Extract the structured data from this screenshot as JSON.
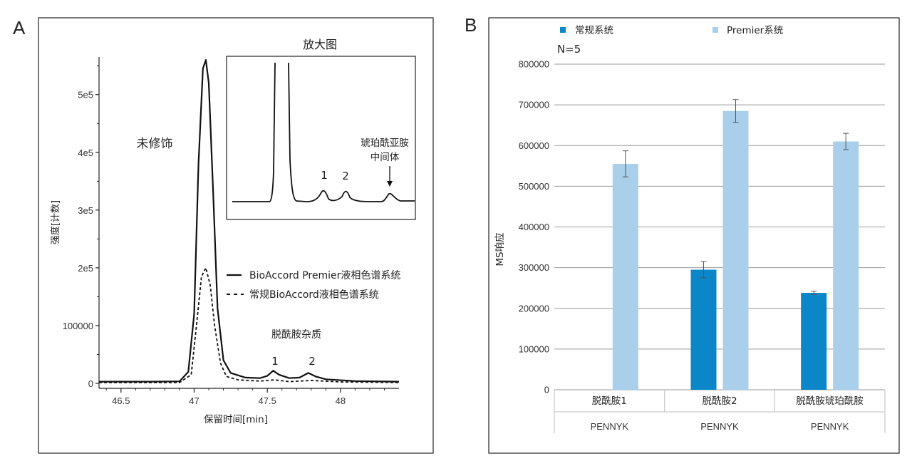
{
  "chart_data": [
    {
      "type": "line",
      "panel_label": "A",
      "xlabel": "保留时间[min]",
      "ylabel": "强度[计数]",
      "x_ticks": [
        "46.5",
        "47",
        "47.5",
        "48"
      ],
      "y_ticks": [
        "0",
        "100000",
        "2e5",
        "3e5",
        "4e5",
        "5e5"
      ],
      "xlim": [
        46.35,
        48.4
      ],
      "ylim": [
        0,
        565000
      ],
      "series": [
        {
          "name": "BioAccord Premier液相色谱系统",
          "style": "solid",
          "x": [
            46.35,
            46.7,
            46.9,
            46.96,
            47.0,
            47.03,
            47.06,
            47.08,
            47.1,
            47.13,
            47.16,
            47.2,
            47.25,
            47.35,
            47.45,
            47.5,
            47.54,
            47.58,
            47.65,
            47.72,
            47.78,
            47.83,
            47.9,
            48.1,
            48.4
          ],
          "y": [
            3000,
            3000,
            3500,
            20000,
            120000,
            380000,
            545000,
            560000,
            520000,
            330000,
            130000,
            40000,
            18000,
            10000,
            9000,
            13000,
            22000,
            15000,
            9000,
            10000,
            18000,
            12000,
            7000,
            4000,
            3000
          ]
        },
        {
          "name": "常规BioAccord液相色谱系统",
          "style": "dashed",
          "x": [
            46.35,
            46.9,
            46.98,
            47.02,
            47.05,
            47.08,
            47.11,
            47.14,
            47.18,
            47.22,
            47.3,
            47.45,
            47.55,
            47.65,
            47.8,
            48.0,
            48.4
          ],
          "y": [
            1500,
            1500,
            15000,
            110000,
            185000,
            200000,
            170000,
            100000,
            35000,
            12000,
            6000,
            4000,
            6000,
            3000,
            5000,
            2500,
            1500
          ]
        }
      ],
      "annotations": [
        "未修饰",
        "脱酰胺杂质",
        "1",
        "2"
      ],
      "inset": {
        "title": "放大图",
        "labels": [
          "1",
          "2",
          "琥珀酰亚胺",
          "中间体"
        ]
      }
    },
    {
      "type": "bar",
      "panel_label": "B",
      "ylabel": "MS响应",
      "annotation": "N=5",
      "ylim": [
        0,
        800000
      ],
      "y_ticks": [
        "0",
        "100000",
        "200000",
        "300000",
        "400000",
        "500000",
        "600000",
        "700000",
        "800000"
      ],
      "categories": [
        "脱酰胺1",
        "脱酰胺2",
        "脱酰胺琥珀酰胺"
      ],
      "group_label": "PENNYK",
      "series": [
        {
          "name": "常规系统",
          "color": "#0a86c9",
          "values": [
            0,
            295000,
            238000
          ],
          "errors": [
            0,
            20000,
            4000
          ]
        },
        {
          "name": "Premier系统",
          "color": "#a9cfea",
          "values": [
            555000,
            685000,
            610000
          ],
          "errors": [
            32000,
            28000,
            20000
          ]
        }
      ],
      "legend_position": "top"
    }
  ]
}
